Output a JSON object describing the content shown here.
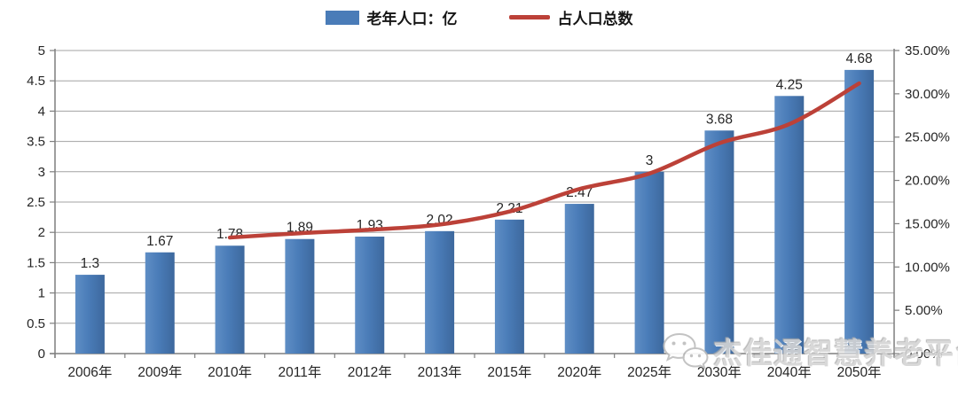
{
  "watermark": {
    "text": "杰佳通智慧养老平台",
    "icon": "wechat-bubbles-icon"
  },
  "colors": {
    "bar": "#4a7cb8",
    "bar_dark_edge": "#3d689d",
    "line": "#bc4138",
    "grid": "#a3a3a3",
    "axis": "#7f7f7f",
    "text": "#262626",
    "watermark": "#d4d4d4",
    "background": "#ffffff"
  },
  "chart_data": {
    "type": "combo",
    "title": "",
    "legend_position": "top",
    "grid": true,
    "categories": [
      "2006年",
      "2009年",
      "2010年",
      "2011年",
      "2012年",
      "2013年",
      "2015年",
      "2020年",
      "2025年",
      "2030年",
      "2040年",
      "2050年"
    ],
    "series": [
      {
        "name": "老年人口：亿",
        "type": "bar",
        "axis": "left",
        "color": "#4a7cb8",
        "values": [
          1.3,
          1.67,
          1.78,
          1.89,
          1.93,
          2.02,
          2.21,
          2.47,
          3,
          3.68,
          4.25,
          4.68
        ],
        "value_labels": [
          "1.3",
          "1.67",
          "1.78",
          "1.89",
          "1.93",
          "2.02",
          "2.21",
          "2.47",
          "3",
          "3.68",
          "4.25",
          "4.68"
        ]
      },
      {
        "name": "占人口总数",
        "type": "line",
        "axis": "right",
        "color": "#bc4138",
        "values": [
          null,
          null,
          13.4,
          13.9,
          14.3,
          14.9,
          16.4,
          19.0,
          20.8,
          24.3,
          26.5,
          31.2
        ]
      }
    ],
    "left_axis": {
      "min": 0,
      "max": 5,
      "step": 0.5,
      "ticks": [
        "0",
        "0.5",
        "1",
        "1.5",
        "2",
        "2.5",
        "3",
        "3.5",
        "4",
        "4.5",
        "5"
      ]
    },
    "right_axis": {
      "min": 0,
      "max": 35,
      "step": 5,
      "ticks": [
        "0.00%",
        "5.00%",
        "10.00%",
        "15.00%",
        "20.00%",
        "25.00%",
        "30.00%",
        "35.00%"
      ]
    }
  }
}
